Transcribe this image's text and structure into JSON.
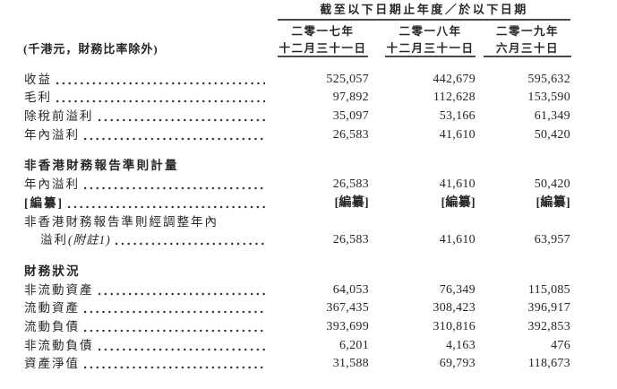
{
  "page": {
    "background": "#ffffff",
    "text_color": "#26262b",
    "rule_color": "#4a4a4a"
  },
  "table": {
    "header": {
      "title": "截至以下日期止年度／於以下日期",
      "unit_note": "(千港元，財務比率除外)",
      "columns": [
        {
          "line1": "二零一七年",
          "line2": "十二月三十一日"
        },
        {
          "line1": "二零一八年",
          "line2": "十二月三十一日"
        },
        {
          "line1": "二零一九年",
          "line2": "六月三十日"
        }
      ]
    },
    "rows": [
      {
        "type": "data",
        "label": "收益",
        "values": [
          "525,057",
          "442,679",
          "595,632"
        ]
      },
      {
        "type": "data",
        "label": "毛利",
        "values": [
          "97,892",
          "112,628",
          "153,590"
        ]
      },
      {
        "type": "data",
        "label": "除稅前溢利",
        "values": [
          "35,097",
          "53,166",
          "61,349"
        ]
      },
      {
        "type": "data",
        "label": "年內溢利",
        "values": [
          "26,583",
          "41,610",
          "50,420"
        ]
      },
      {
        "type": "section",
        "label": "非香港財務報告準則計量"
      },
      {
        "type": "data",
        "label": "年內溢利",
        "values": [
          "26,583",
          "41,610",
          "50,420"
        ]
      },
      {
        "type": "data",
        "label": "[編纂]",
        "bold": true,
        "values": [
          "[編纂]",
          "[編纂]",
          "[編纂]"
        ]
      },
      {
        "type": "wrap",
        "line1": "非香港財務報告準則經調整年內",
        "line2_main": "溢利",
        "line2_note": "(附註1)",
        "values": [
          "26,583",
          "41,610",
          "63,957"
        ]
      },
      {
        "type": "section",
        "label": "財務狀況"
      },
      {
        "type": "data",
        "label": "非流動資產",
        "values": [
          "64,053",
          "76,349",
          "115,085"
        ]
      },
      {
        "type": "data",
        "label": "流動資產",
        "values": [
          "367,435",
          "308,423",
          "396,917"
        ]
      },
      {
        "type": "data",
        "label": "流動負債",
        "values": [
          "393,699",
          "310,816",
          "392,853"
        ]
      },
      {
        "type": "data",
        "label": "非流動負債",
        "values": [
          "6,201",
          "4,163",
          "476"
        ]
      },
      {
        "type": "data",
        "label": "資產淨值",
        "values": [
          "31,588",
          "69,793",
          "118,673"
        ]
      }
    ]
  }
}
